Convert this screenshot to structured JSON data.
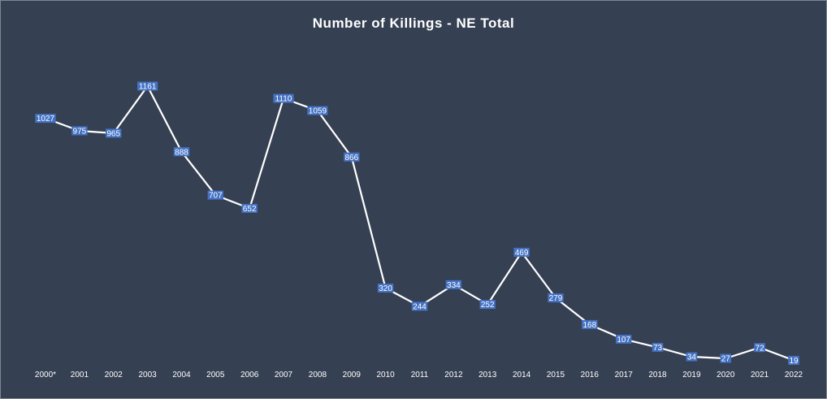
{
  "chart_data": {
    "type": "line",
    "title": "Number of Killings - NE Total",
    "categories": [
      "2000*",
      "2001",
      "2002",
      "2003",
      "2004",
      "2005",
      "2006",
      "2007",
      "2008",
      "2009",
      "2010",
      "2011",
      "2012",
      "2013",
      "2014",
      "2015",
      "2016",
      "2017",
      "2018",
      "2019",
      "2020",
      "2021",
      "2022"
    ],
    "series": [
      {
        "values": [
          1027,
          975,
          965,
          1161,
          888,
          707,
          652,
          1110,
          1059,
          866,
          320,
          244,
          334,
          252,
          469,
          279,
          168,
          107,
          73,
          34,
          27,
          72,
          19
        ]
      }
    ],
    "xlabel": "",
    "ylabel": "",
    "ylim": [
      0,
      1161
    ],
    "grid": false,
    "legend": "none",
    "data_labels": true
  },
  "colors": {
    "background": "#354052",
    "line": "#ffffff",
    "label_box": "#4472c4",
    "text": "#ffffff",
    "border": "#7d8591"
  }
}
